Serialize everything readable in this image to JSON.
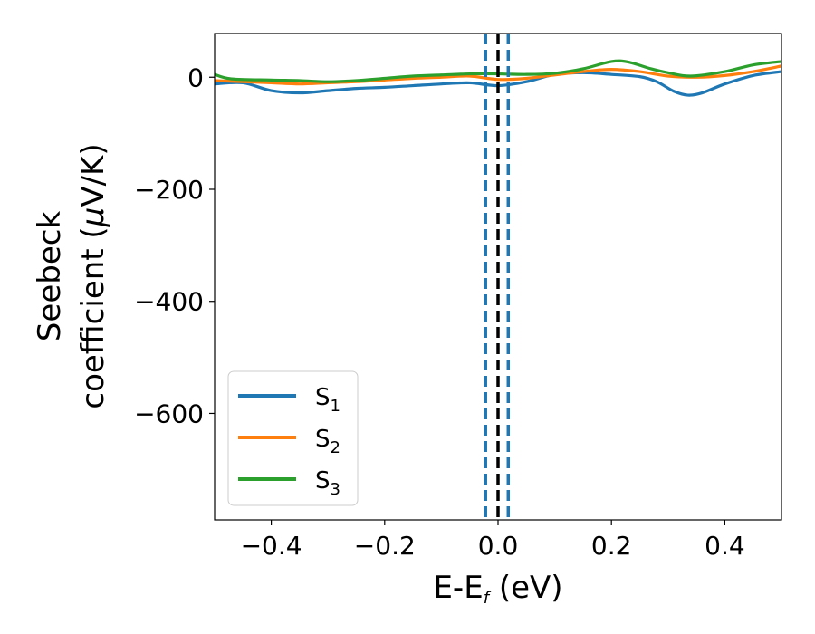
{
  "chart_data": {
    "type": "line",
    "xlabel": {
      "main": "E-E",
      "sub": "f",
      "unit": " (eV)"
    },
    "ylabel": {
      "line1": "Seebeck",
      "line2_pre": "coefficient  (",
      "mu": "μ",
      "line2_post": "V/K)"
    },
    "xlim": [
      -0.5,
      0.5
    ],
    "ylim": [
      -790,
      78
    ],
    "xticks": [
      -0.4,
      -0.2,
      0.0,
      0.2,
      0.4
    ],
    "xtick_labels": [
      "−0.4",
      "−0.2",
      "0.0",
      "0.2",
      "0.4"
    ],
    "yticks": [
      0,
      -200,
      -400,
      -600
    ],
    "ytick_labels": [
      "0",
      "−200",
      "−400",
      "−600"
    ],
    "legend_position": "lower-left",
    "vlines": [
      {
        "x": -0.022,
        "style": "dashed",
        "color": "#1f77b4"
      },
      {
        "x": 0.0,
        "style": "dashed",
        "color": "#000000"
      },
      {
        "x": 0.018,
        "style": "dashed",
        "color": "#1f77b4"
      }
    ],
    "series": [
      {
        "name": "S",
        "sub": "1",
        "color": "#1f77b4",
        "x": [
          -0.5,
          -0.45,
          -0.4,
          -0.35,
          -0.3,
          -0.25,
          -0.2,
          -0.15,
          -0.1,
          -0.05,
          0.0,
          0.05,
          0.1,
          0.15,
          0.2,
          0.25,
          0.28,
          0.31,
          0.335,
          0.36,
          0.4,
          0.45,
          0.5
        ],
        "y": [
          -12,
          -10,
          -24,
          -28,
          -24,
          -20,
          -18,
          -15,
          -12,
          -10,
          -15,
          -8,
          5,
          8,
          5,
          1,
          -8,
          -25,
          -32,
          -28,
          -12,
          3,
          10
        ]
      },
      {
        "name": "S",
        "sub": "2",
        "color": "#ff7f0e",
        "x": [
          -0.5,
          -0.45,
          -0.4,
          -0.35,
          -0.3,
          -0.25,
          -0.2,
          -0.15,
          -0.1,
          -0.05,
          0.0,
          0.05,
          0.1,
          0.15,
          0.2,
          0.25,
          0.3,
          0.35,
          0.4,
          0.45,
          0.5
        ],
        "y": [
          -6,
          -8,
          -10,
          -12,
          -10,
          -8,
          -5,
          -2,
          0,
          2,
          -4,
          -2,
          4,
          10,
          14,
          10,
          2,
          0,
          3,
          10,
          20
        ]
      },
      {
        "name": "S",
        "sub": "3",
        "color": "#2ca02c",
        "x": [
          -0.5,
          -0.47,
          -0.4,
          -0.35,
          -0.3,
          -0.25,
          -0.2,
          -0.15,
          -0.1,
          -0.05,
          0.0,
          0.05,
          0.1,
          0.15,
          0.2,
          0.23,
          0.27,
          0.3,
          0.34,
          0.4,
          0.45,
          0.5
        ],
        "y": [
          5,
          -3,
          -5,
          -6,
          -8,
          -6,
          -2,
          2,
          4,
          6,
          6,
          5,
          7,
          15,
          28,
          27,
          15,
          8,
          2,
          10,
          22,
          28
        ]
      }
    ]
  }
}
